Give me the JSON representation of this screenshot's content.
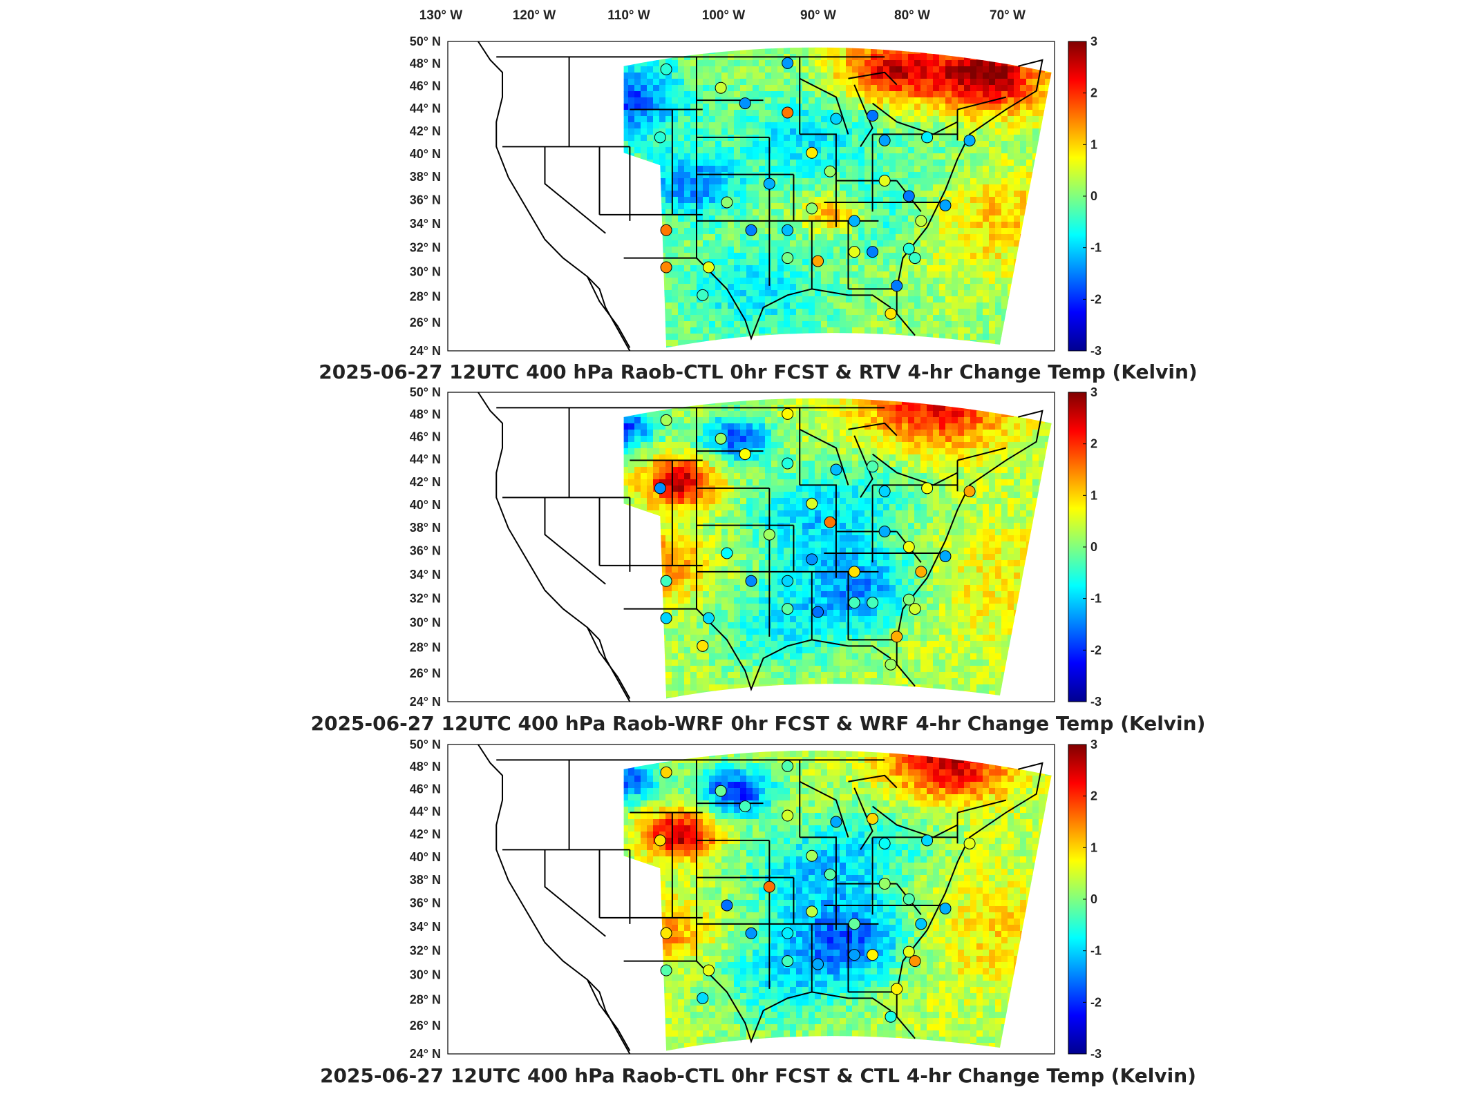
{
  "lon_labels": [
    "130° W",
    "120° W",
    "110° W",
    "100° W",
    "90° W",
    "80° W",
    "70° W"
  ],
  "lat_labels": [
    "24° N",
    "26° N",
    "28° N",
    "30° N",
    "32° N",
    "34° N",
    "36° N",
    "38° N",
    "40° N",
    "42° N",
    "44° N",
    "46° N",
    "48° N",
    "50° N"
  ],
  "colorbar_ticks": [
    "3",
    "2",
    "1",
    "0",
    "-1",
    "-2",
    "-3"
  ],
  "colormap": [
    "#00008f",
    "#0000ff",
    "#0080ff",
    "#00ffff",
    "#80ff80",
    "#ffff00",
    "#ff8000",
    "#ff0000",
    "#800000"
  ],
  "colorbar_range": [
    -3,
    3
  ],
  "panels": [
    {
      "title": "2025-06-27 12UTC 400 hPa Raob-CTL 0hr FCST & RTV 4-hr Change Temp (Kelvin)",
      "variant": "rtv"
    },
    {
      "title": "2025-06-27 12UTC 400 hPa Raob-WRF 0hr FCST & WRF 4-hr Change Temp (Kelvin)",
      "variant": "wrf"
    },
    {
      "title": "2025-06-27 12UTC 400 hPa Raob-CTL 0hr FCST & CTL 4-hr Change Temp (Kelvin)",
      "variant": "ctl"
    }
  ],
  "map_extent": {
    "lon": [
      -135,
      -65
    ],
    "lat": [
      24,
      50
    ]
  }
}
